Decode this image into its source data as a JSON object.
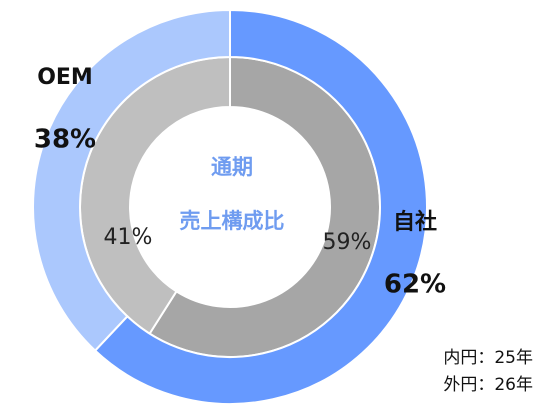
{
  "chart_data": {
    "type": "donut",
    "categories": [
      "自社",
      "OEM"
    ],
    "series": [
      {
        "values": [
          59,
          41
        ],
        "value_labels": [
          "59%",
          "41%"
        ],
        "colors": [
          "#a6a6a6",
          "#bfbfbf"
        ]
      },
      {
        "values": [
          62,
          38
        ],
        "value_labels": [
          "62%",
          "38%"
        ],
        "colors": [
          "#6699ff",
          "#abc8fd"
        ]
      }
    ],
    "center_text": [
      "通期",
      "売上構成比"
    ],
    "annotations": [
      "内円：25年",
      "外円：26年"
    ]
  }
}
